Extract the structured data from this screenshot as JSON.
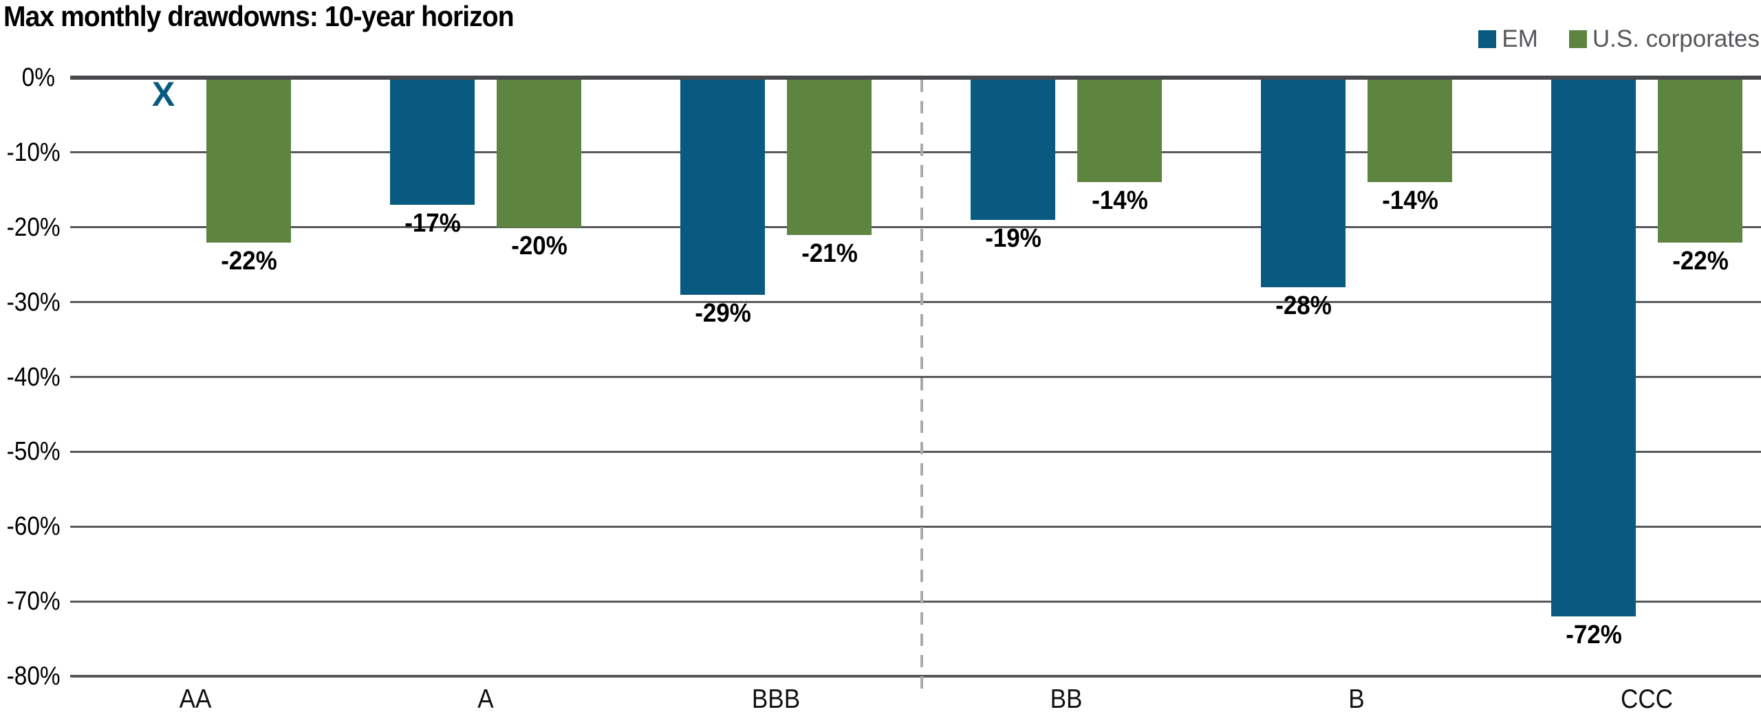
{
  "chart_data": {
    "type": "bar",
    "title": "Max monthly drawdowns: 10-year horizon",
    "categories": [
      "AA",
      "A",
      "BBB",
      "BB",
      "B",
      "CCC"
    ],
    "series": [
      {
        "name": "EM",
        "color": "#085A80",
        "values": [
          null,
          -17,
          -29,
          -19,
          -28,
          -72
        ],
        "labels": [
          "X",
          "-17%",
          "-29%",
          "-19%",
          "-28%",
          "-72%"
        ]
      },
      {
        "name": "U.S. corporates",
        "color": "#5E8540",
        "values": [
          -22,
          -20,
          -21,
          -14,
          -14,
          -22
        ],
        "labels": [
          "-22%",
          "-20%",
          "-21%",
          "-14%",
          "-14%",
          "-22%"
        ]
      }
    ],
    "no_data_marker": "X",
    "ylim": [
      -80,
      0
    ],
    "y_tick_values": [
      0,
      -10,
      -20,
      -30,
      -40,
      -50,
      -60,
      -70,
      -80
    ],
    "y_ticks": [
      "0%",
      "-10%",
      "-20%",
      "-30%",
      "-40%",
      "-50%",
      "-60%",
      "-70%",
      "-80%"
    ],
    "separator_after_category_index": 2,
    "grid": true,
    "legend_position": "top-right",
    "colors": {
      "gridline": "#56585C",
      "zero_line": "#47494D",
      "separator": "#ABABAB",
      "legend_text": "#54565A",
      "value_label": "#000000"
    }
  }
}
